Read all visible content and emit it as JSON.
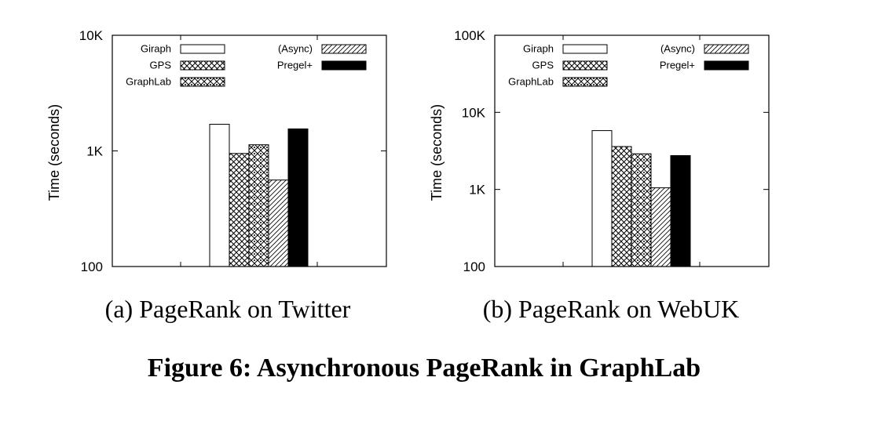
{
  "figure_title": "Figure 6: Asynchronous PageRank in GraphLab",
  "chart_data": [
    {
      "type": "bar",
      "caption": "(a) PageRank on Twitter",
      "ylabel": "Time (seconds)",
      "yscale": "log",
      "ylim": [
        100,
        10000
      ],
      "yticks": [
        100,
        1000,
        10000
      ],
      "yticklabels": [
        "100",
        "1K",
        "10K"
      ],
      "grid": false,
      "legend": "top",
      "series": [
        {
          "name": "Giraph",
          "pattern": "empty",
          "value": 1700
        },
        {
          "name": "GPS",
          "pattern": "crosshatch",
          "value": 950
        },
        {
          "name": "GraphLab",
          "pattern": "diamond",
          "value": 1130
        },
        {
          "name": "(Async)",
          "pattern": "diagonal",
          "value": 560
        },
        {
          "name": "Pregel+",
          "pattern": "solid",
          "value": 1550
        }
      ]
    },
    {
      "type": "bar",
      "caption": "(b) PageRank on WebUK",
      "ylabel": "Time (seconds)",
      "yscale": "log",
      "ylim": [
        100,
        100000
      ],
      "yticks": [
        100,
        1000,
        10000,
        100000
      ],
      "yticklabels": [
        "100",
        "1K",
        "10K",
        "100K"
      ],
      "grid": false,
      "legend": "top",
      "series": [
        {
          "name": "Giraph",
          "pattern": "empty",
          "value": 5800
        },
        {
          "name": "GPS",
          "pattern": "crosshatch",
          "value": 3600
        },
        {
          "name": "GraphLab",
          "pattern": "diamond",
          "value": 2900
        },
        {
          "name": "(Async)",
          "pattern": "diagonal",
          "value": 1050
        },
        {
          "name": "Pregel+",
          "pattern": "solid",
          "value": 2750
        }
      ]
    }
  ]
}
